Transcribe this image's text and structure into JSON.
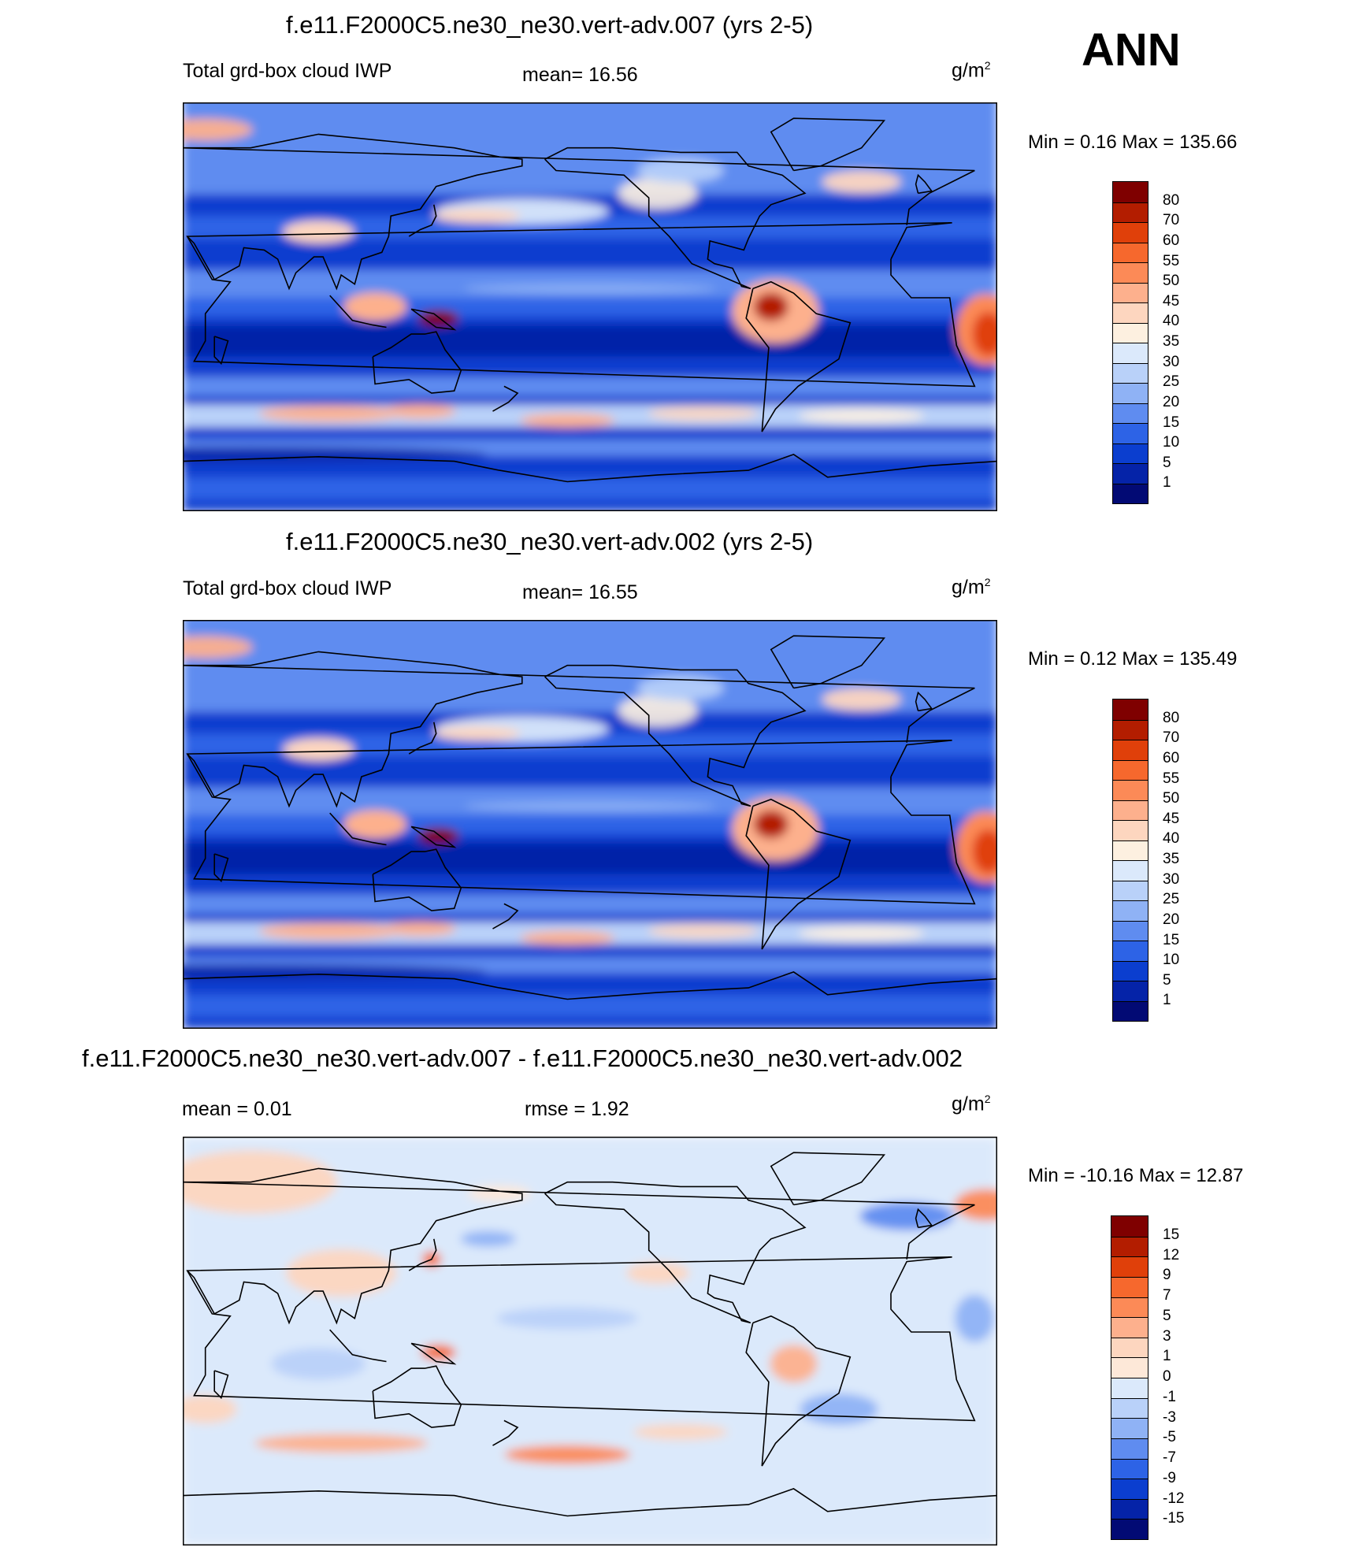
{
  "season": "ANN",
  "panels": [
    {
      "title": "f.e11.F2000C5.ne30_ne30.vert-adv.007 (yrs 2-5)",
      "left_label": "Total grd-box cloud IWP",
      "center_label": "mean=  16.56",
      "units_base": "g/m",
      "units_exp": "2",
      "minmax": "Min =   0.16 Max = 135.66",
      "field": "abs",
      "colorbar": {
        "labels": [
          "80",
          "70",
          "60",
          "55",
          "50",
          "45",
          "40",
          "35",
          "30",
          "25",
          "20",
          "15",
          "10",
          "5",
          "1"
        ],
        "colors": [
          "#7f0000",
          "#b31d00",
          "#e0400a",
          "#f6682d",
          "#fc8a57",
          "#fdb08d",
          "#fdd6bf",
          "#fdf0e0",
          "#dbe9fb",
          "#b9d1f9",
          "#8fb2f5",
          "#5f8cf0",
          "#2d63e6",
          "#0b3ecf",
          "#0523a8",
          "#020a74"
        ]
      }
    },
    {
      "title": "f.e11.F2000C5.ne30_ne30.vert-adv.002 (yrs 2-5)",
      "left_label": "Total grd-box cloud IWP",
      "center_label": "mean=  16.55",
      "units_base": "g/m",
      "units_exp": "2",
      "minmax": "Min =   0.12 Max = 135.49",
      "field": "abs",
      "colorbar": {
        "labels": [
          "80",
          "70",
          "60",
          "55",
          "50",
          "45",
          "40",
          "35",
          "30",
          "25",
          "20",
          "15",
          "10",
          "5",
          "1"
        ],
        "colors": [
          "#7f0000",
          "#b31d00",
          "#e0400a",
          "#f6682d",
          "#fc8a57",
          "#fdb08d",
          "#fdd6bf",
          "#fdf0e0",
          "#dbe9fb",
          "#b9d1f9",
          "#8fb2f5",
          "#5f8cf0",
          "#2d63e6",
          "#0b3ecf",
          "#0523a8",
          "#020a74"
        ]
      }
    },
    {
      "title": "f.e11.F2000C5.ne30_ne30.vert-adv.007 - f.e11.F2000C5.ne30_ne30.vert-adv.002",
      "left_label": "mean =   0.01",
      "center_label": "rmse =   1.92",
      "units_base": "g/m",
      "units_exp": "2",
      "minmax": "Min = -10.16 Max =  12.87",
      "field": "diff",
      "colorbar": {
        "labels": [
          "15",
          "12",
          "9",
          "7",
          "5",
          "3",
          "1",
          "0",
          "-1",
          "-3",
          "-5",
          "-7",
          "-9",
          "-12",
          "-15"
        ],
        "colors": [
          "#7f0000",
          "#b31d00",
          "#e0400a",
          "#f6682d",
          "#fc8a57",
          "#fdb08d",
          "#fdd6bf",
          "#fde8d8",
          "#dbe9fb",
          "#b9d1f9",
          "#8fb2f5",
          "#5f8cf0",
          "#2d63e6",
          "#0b3ecf",
          "#0523a8",
          "#020a74"
        ]
      }
    }
  ]
}
